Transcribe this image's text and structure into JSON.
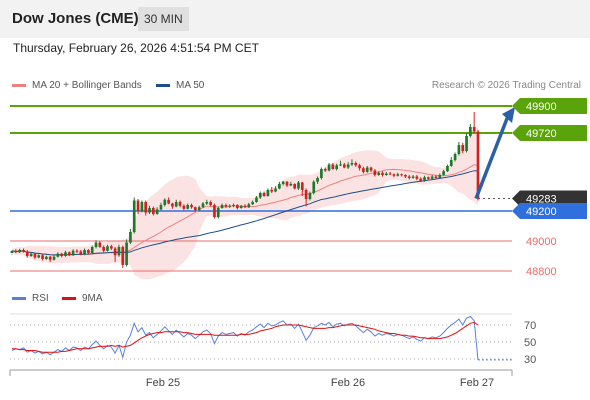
{
  "header": {
    "title": "Dow Jones (CME)",
    "interval": "30 MIN"
  },
  "timestamp": "Thursday, February 26, 2026 4:51:54 PM CET",
  "legend": {
    "ma_label": "MA 20 + Bollinger Bands",
    "ma50_label": "MA 50",
    "credit": "Research © 2026 Trading Central"
  },
  "rsi_legend": {
    "rsi": "RSI",
    "ma": "9MA"
  },
  "colors": {
    "ma20": "#f08080",
    "ma50": "#1f4e8c",
    "bb": "#fbd7d7",
    "up": "#1a7a2c",
    "down": "#d02020",
    "resistance": "#5aa30a",
    "support": "#2f6fde",
    "target_red": "#e86b6b",
    "arrow": "#2d5fa6",
    "rsi": "#5b7fd8",
    "rsi_ma": "#e01010"
  },
  "chart_data": {
    "type": "candlestick",
    "price_axis": {
      "min": 48700,
      "max": 50000
    },
    "x_ticks": [
      "Feb 25",
      "Feb 26",
      "Feb 27"
    ],
    "levels": [
      {
        "label": "49900",
        "value": 49900,
        "kind": "resistance"
      },
      {
        "label": "49720",
        "value": 49720,
        "kind": "resistance"
      },
      {
        "label": "49283",
        "value": 49283,
        "kind": "last"
      },
      {
        "label": "49200",
        "value": 49200,
        "kind": "support"
      },
      {
        "label": "49000",
        "value": 49000,
        "kind": "target"
      },
      {
        "label": "48800",
        "value": 48800,
        "kind": "target"
      }
    ],
    "candles": [
      [
        48920,
        48935,
        48915,
        48910
      ],
      [
        48935,
        48925,
        48945,
        48918
      ],
      [
        48925,
        48940,
        48948,
        48920
      ],
      [
        48940,
        48930,
        48950,
        48922
      ],
      [
        48930,
        48900,
        48940,
        48890
      ],
      [
        48900,
        48915,
        48925,
        48895
      ],
      [
        48915,
        48890,
        48920,
        48880
      ],
      [
        48890,
        48905,
        48912,
        48885
      ],
      [
        48905,
        48880,
        48910,
        48870
      ],
      [
        48880,
        48895,
        48902,
        48875
      ],
      [
        48895,
        48875,
        48900,
        48860
      ],
      [
        48875,
        48895,
        48905,
        48870
      ],
      [
        48895,
        48915,
        48925,
        48890
      ],
      [
        48915,
        48900,
        48922,
        48890
      ],
      [
        48900,
        48925,
        48935,
        48895
      ],
      [
        48925,
        48905,
        48930,
        48900
      ],
      [
        48905,
        48935,
        48945,
        48900
      ],
      [
        48935,
        48930,
        48945,
        48920
      ],
      [
        48930,
        48910,
        48940,
        48905
      ],
      [
        48910,
        48940,
        48950,
        48905
      ],
      [
        48940,
        48920,
        48945,
        48910
      ],
      [
        48920,
        48960,
        48970,
        48915
      ],
      [
        48960,
        48990,
        49005,
        48950
      ],
      [
        48990,
        48960,
        48998,
        48955
      ],
      [
        48960,
        48935,
        48970,
        48925
      ],
      [
        48935,
        48965,
        48975,
        48930
      ],
      [
        48965,
        48950,
        48975,
        48940
      ],
      [
        48950,
        48905,
        48960,
        48860
      ],
      [
        48905,
        48960,
        48975,
        48895
      ],
      [
        48960,
        48840,
        48970,
        48820
      ],
      [
        48840,
        48990,
        49010,
        48830
      ],
      [
        48990,
        49060,
        49080,
        48980
      ],
      [
        49060,
        49270,
        49290,
        49050
      ],
      [
        49270,
        49200,
        49280,
        49180
      ],
      [
        49200,
        49260,
        49270,
        49190
      ],
      [
        49260,
        49190,
        49270,
        49170
      ],
      [
        49190,
        49220,
        49235,
        49180
      ],
      [
        49220,
        49180,
        49230,
        49170
      ],
      [
        49180,
        49210,
        49225,
        49175
      ],
      [
        49210,
        49240,
        49255,
        49205
      ],
      [
        49240,
        49275,
        49285,
        49230
      ],
      [
        49275,
        49250,
        49290,
        49245
      ],
      [
        49250,
        49230,
        49255,
        49215
      ],
      [
        49230,
        49260,
        49275,
        49225
      ],
      [
        49260,
        49235,
        49270,
        49225
      ],
      [
        49235,
        49215,
        49245,
        49205
      ],
      [
        49215,
        49240,
        49250,
        49210
      ],
      [
        49240,
        49225,
        49250,
        49215
      ],
      [
        49225,
        49205,
        49230,
        49195
      ],
      [
        49205,
        49225,
        49235,
        49200
      ],
      [
        49225,
        49250,
        49260,
        49220
      ],
      [
        49250,
        49260,
        49275,
        49240
      ],
      [
        49260,
        49240,
        49270,
        49230
      ],
      [
        49240,
        49160,
        49250,
        49150
      ],
      [
        49160,
        49220,
        49230,
        49150
      ],
      [
        49220,
        49240,
        49250,
        49215
      ],
      [
        49240,
        49230,
        49250,
        49220
      ],
      [
        49230,
        49235,
        49245,
        49220
      ],
      [
        49235,
        49240,
        49250,
        49225
      ],
      [
        49240,
        49220,
        49245,
        49210
      ],
      [
        49220,
        49235,
        49240,
        49215
      ],
      [
        49235,
        49225,
        49245,
        49220
      ],
      [
        49225,
        49245,
        49255,
        49220
      ],
      [
        49245,
        49260,
        49270,
        49240
      ],
      [
        49260,
        49290,
        49300,
        49255
      ],
      [
        49290,
        49320,
        49330,
        49280
      ],
      [
        49320,
        49300,
        49330,
        49295
      ],
      [
        49300,
        49340,
        49350,
        49295
      ],
      [
        49340,
        49330,
        49360,
        49320
      ],
      [
        49330,
        49350,
        49365,
        49325
      ],
      [
        49350,
        49380,
        49395,
        49345
      ],
      [
        49380,
        49395,
        49400,
        49370
      ],
      [
        49395,
        49370,
        49400,
        49360
      ],
      [
        49370,
        49380,
        49395,
        49365
      ],
      [
        49380,
        49350,
        49385,
        49345
      ],
      [
        49350,
        49390,
        49400,
        49340
      ],
      [
        49390,
        49340,
        49395,
        49300
      ],
      [
        49340,
        49280,
        49350,
        49230
      ],
      [
        49280,
        49320,
        49330,
        49270
      ],
      [
        49320,
        49395,
        49405,
        49310
      ],
      [
        49395,
        49420,
        49430,
        49380
      ],
      [
        49420,
        49480,
        49490,
        49410
      ],
      [
        49480,
        49470,
        49490,
        49460
      ],
      [
        49470,
        49510,
        49520,
        49465
      ],
      [
        49510,
        49480,
        49520,
        49475
      ],
      [
        49480,
        49505,
        49515,
        49470
      ],
      [
        49505,
        49510,
        49535,
        49500
      ],
      [
        49510,
        49490,
        49520,
        49485
      ],
      [
        49490,
        49510,
        49525,
        49480
      ],
      [
        49510,
        49520,
        49545,
        49500
      ],
      [
        49520,
        49505,
        49530,
        49495
      ],
      [
        49505,
        49485,
        49515,
        49470
      ],
      [
        49485,
        49460,
        49495,
        49450
      ],
      [
        49460,
        49490,
        49500,
        49455
      ],
      [
        49490,
        49470,
        49495,
        49460
      ],
      [
        49470,
        49440,
        49480,
        49430
      ],
      [
        49440,
        49455,
        49465,
        49435
      ],
      [
        49455,
        49440,
        49465,
        49430
      ],
      [
        49440,
        49450,
        49460,
        49435
      ],
      [
        49450,
        49445,
        49460,
        49440
      ],
      [
        49445,
        49435,
        49450,
        49425
      ],
      [
        49435,
        49445,
        49455,
        49430
      ],
      [
        49445,
        49440,
        49450,
        49430
      ],
      [
        49440,
        49430,
        49445,
        49420
      ],
      [
        49430,
        49420,
        49440,
        49410
      ],
      [
        49420,
        49430,
        49440,
        49415
      ],
      [
        49430,
        49415,
        49440,
        49405
      ],
      [
        49415,
        49400,
        49425,
        49395
      ],
      [
        49400,
        49425,
        49435,
        49395
      ],
      [
        49425,
        49415,
        49430,
        49405
      ],
      [
        49415,
        49430,
        49440,
        49410
      ],
      [
        49430,
        49420,
        49440,
        49412
      ],
      [
        49420,
        49440,
        49450,
        49415
      ],
      [
        49440,
        49465,
        49475,
        49435
      ],
      [
        49465,
        49500,
        49510,
        49460
      ],
      [
        49500,
        49540,
        49560,
        49495
      ],
      [
        49540,
        49580,
        49590,
        49530
      ],
      [
        49580,
        49640,
        49660,
        49570
      ],
      [
        49640,
        49600,
        49655,
        49585
      ],
      [
        49600,
        49700,
        49720,
        49590
      ],
      [
        49700,
        49760,
        49780,
        49690
      ],
      [
        49760,
        49730,
        49860,
        49720
      ],
      [
        49730,
        49283,
        49740,
        49270
      ]
    ],
    "projection": {
      "from": 49283,
      "to": 49900
    },
    "rsi": {
      "ticks": [
        "70",
        "50",
        "30"
      ],
      "min": 20,
      "max": 80,
      "values": [
        40,
        42,
        41,
        43,
        38,
        40,
        37,
        39,
        36,
        38,
        35,
        38,
        41,
        39,
        43,
        40,
        44,
        43,
        40,
        44,
        42,
        47,
        51,
        46,
        42,
        46,
        44,
        37,
        46,
        32,
        50,
        58,
        72,
        62,
        67,
        58,
        61,
        55,
        59,
        63,
        68,
        63,
        59,
        64,
        60,
        56,
        60,
        58,
        54,
        58,
        62,
        64,
        60,
        48,
        57,
        61,
        59,
        60,
        61,
        57,
        60,
        58,
        62,
        64,
        68,
        71,
        67,
        72,
        69,
        70,
        73,
        75,
        70,
        71,
        66,
        71,
        62,
        52,
        58,
        67,
        69,
        72,
        70,
        73,
        68,
        71,
        72,
        69,
        71,
        72,
        69,
        65,
        61,
        65,
        62,
        57,
        60,
        58,
        60,
        59,
        57,
        59,
        58,
        56,
        54,
        56,
        53,
        51,
        55,
        54,
        56,
        55,
        57,
        61,
        66,
        70,
        73,
        77,
        70,
        78,
        80,
        75,
        29
      ],
      "ma": [
        42,
        42,
        41,
        41,
        40,
        40,
        40,
        39,
        38,
        38,
        38,
        38,
        38,
        39,
        39,
        40,
        41,
        42,
        42,
        42,
        42,
        43,
        44,
        45,
        45,
        45,
        46,
        45,
        46,
        44,
        45,
        46,
        49,
        52,
        55,
        57,
        59,
        60,
        61,
        61,
        62,
        62,
        62,
        62,
        62,
        61,
        61,
        60,
        59,
        59,
        59,
        59,
        59,
        58,
        58,
        58,
        58,
        58,
        58,
        58,
        59,
        59,
        59,
        60,
        61,
        63,
        64,
        65,
        66,
        68,
        69,
        70,
        70,
        70,
        70,
        70,
        69,
        68,
        67,
        66,
        66,
        66,
        66,
        67,
        67,
        68,
        69,
        70,
        70,
        70,
        70,
        69,
        68,
        67,
        66,
        65,
        63,
        62,
        61,
        60,
        60,
        59,
        58,
        58,
        57,
        57,
        56,
        55,
        55,
        54,
        54,
        54,
        54,
        55,
        56,
        58,
        60,
        63,
        66,
        69,
        72,
        73,
        70
      ]
    }
  }
}
